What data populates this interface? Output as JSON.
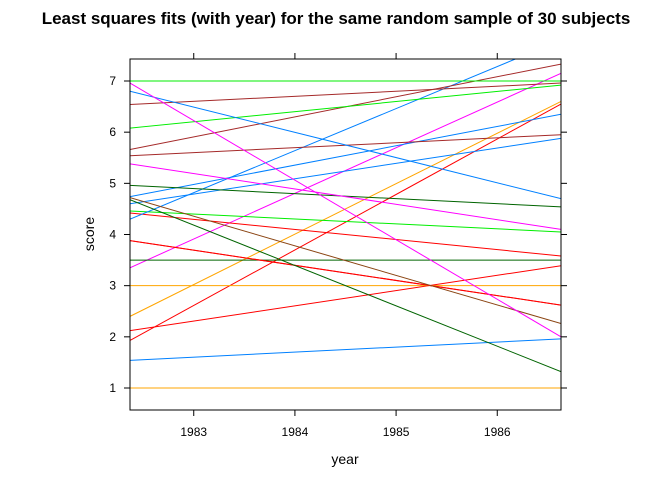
{
  "chart_data": {
    "type": "line",
    "title": "Least squares fits (with year) for the same random sample of 30 subjects",
    "xlabel": "year",
    "ylabel": "score",
    "xlim": [
      1982.37,
      1986.63
    ],
    "ylim": [
      0.57,
      7.43
    ],
    "x_ticks": [
      "1983",
      "1984",
      "1985",
      "1986"
    ],
    "y_ticks": [
      "1",
      "2",
      "3",
      "4",
      "5",
      "6",
      "7"
    ],
    "grid": false,
    "legend": "none",
    "x_range": [
      1982.37,
      1986.63
    ],
    "series": [
      {
        "color": "#FFA500",
        "values": [
          1.0,
          1.0
        ]
      },
      {
        "color": "#0080FF",
        "values": [
          1.54,
          1.96
        ]
      },
      {
        "color": "#FF0000",
        "values": [
          1.93,
          6.55
        ]
      },
      {
        "color": "#FF0000",
        "values": [
          2.12,
          3.39
        ]
      },
      {
        "color": "#FFA500",
        "values": [
          2.4,
          6.6
        ]
      },
      {
        "color": "#FFA500",
        "values": [
          3.0,
          3.0
        ]
      },
      {
        "color": "#FF00FF",
        "values": [
          3.35,
          7.15
        ]
      },
      {
        "color": "#006400",
        "values": [
          3.5,
          3.5
        ]
      },
      {
        "color": "#FF0000",
        "values": [
          3.88,
          2.62
        ]
      },
      {
        "color": "#FF0000",
        "values": [
          3.88,
          2.62
        ]
      },
      {
        "color": "#FF0000",
        "values": [
          4.42,
          3.58
        ]
      },
      {
        "color": "#00EE00",
        "values": [
          4.46,
          4.05
        ]
      },
      {
        "color": "#0080FF",
        "values": [
          4.3,
          7.8
        ]
      },
      {
        "color": "#0080FF",
        "values": [
          4.6,
          5.88
        ]
      },
      {
        "color": "#006400",
        "values": [
          4.68,
          1.32
        ]
      },
      {
        "color": "#8B4513",
        "values": [
          4.72,
          2.26
        ]
      },
      {
        "color": "#0080FF",
        "values": [
          4.74,
          6.35
        ]
      },
      {
        "color": "#006400",
        "values": [
          4.96,
          4.54
        ]
      },
      {
        "color": "#FF00FF",
        "values": [
          5.38,
          4.1
        ]
      },
      {
        "color": "#A52A2A",
        "values": [
          5.54,
          5.95
        ]
      },
      {
        "color": "#A52A2A",
        "values": [
          5.66,
          7.33
        ]
      },
      {
        "color": "#00EE00",
        "values": [
          6.08,
          6.92
        ]
      },
      {
        "color": "#A52A2A",
        "values": [
          6.54,
          6.96
        ]
      },
      {
        "color": "#0080FF",
        "values": [
          6.8,
          4.7
        ]
      },
      {
        "color": "#FF00FF",
        "values": [
          6.96,
          2.0
        ]
      },
      {
        "color": "#006400",
        "values": [
          7.0,
          7.0
        ]
      },
      {
        "color": "#00EE00",
        "values": [
          7.0,
          7.0
        ]
      }
    ]
  }
}
